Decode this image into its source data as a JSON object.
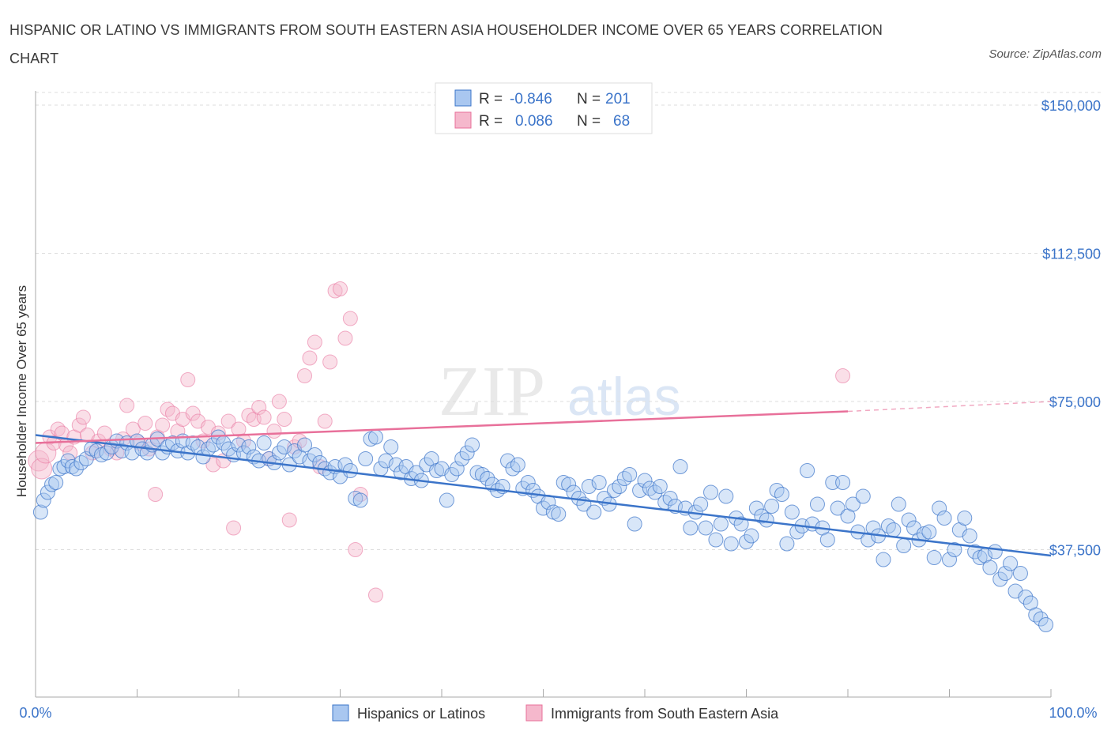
{
  "title": "HISPANIC OR LATINO VS IMMIGRANTS FROM SOUTH EASTERN ASIA HOUSEHOLDER INCOME OVER 65 YEARS CORRELATION CHART",
  "source": "Source: ZipAtlas.com",
  "watermark": {
    "zip": "ZIP",
    "atlas": "atlas"
  },
  "colors": {
    "blue": "#3b74c9",
    "blue_fill": "#a9c7f0",
    "pink": "#e8709a",
    "pink_fill": "#f5b8cc",
    "grid": "#dddddd"
  },
  "legend": {
    "rows": [
      {
        "r_label": "R =",
        "r_value": "-0.846",
        "n_label": "N =",
        "n_value": "201"
      },
      {
        "r_label": "R =",
        "r_value": "0.086",
        "n_label": "N =",
        "n_value": "68"
      }
    ]
  },
  "chart_data": {
    "type": "scatter",
    "title": "HISPANIC OR LATINO VS IMMIGRANTS FROM SOUTH EASTERN ASIA HOUSEHOLDER INCOME OVER 65 YEARS CORRELATION CHART",
    "xlabel": "",
    "ylabel": "Householder Income Over 65 years",
    "xlim": [
      0,
      100
    ],
    "ylim": [
      0,
      150000
    ],
    "x_tick_labels": [
      "0.0%",
      "100.0%"
    ],
    "y_tick_labels": [
      "$150,000",
      "$112,500",
      "$75,000",
      "$37,500"
    ],
    "y_ticks": [
      150000,
      112500,
      75000,
      37500
    ],
    "grid": true,
    "legend_position": "top-center and bottom",
    "series": [
      {
        "name": "Hispanics or Latinos",
        "color": "#3b74c9",
        "trend": {
          "x": [
            0,
            100
          ],
          "y": [
            66500,
            36000
          ]
        },
        "points": [
          [
            0.5,
            47000
          ],
          [
            0.8,
            50000
          ],
          [
            1.2,
            52000
          ],
          [
            1.6,
            54000
          ],
          [
            2.0,
            54500
          ],
          [
            2.4,
            58000
          ],
          [
            2.8,
            58500
          ],
          [
            3.2,
            60000
          ],
          [
            3.6,
            58500
          ],
          [
            4.0,
            58000
          ],
          [
            4.5,
            59500
          ],
          [
            5.0,
            60500
          ],
          [
            5.5,
            63000
          ],
          [
            6.0,
            62500
          ],
          [
            6.5,
            61500
          ],
          [
            7.0,
            62000
          ],
          [
            7.5,
            63500
          ],
          [
            8.0,
            65000
          ],
          [
            8.5,
            62500
          ],
          [
            9.0,
            64500
          ],
          [
            9.5,
            62000
          ],
          [
            10.0,
            65000
          ],
          [
            10.5,
            63000
          ],
          [
            11.0,
            62000
          ],
          [
            11.5,
            64000
          ],
          [
            12.0,
            65500
          ],
          [
            12.5,
            62000
          ],
          [
            13.0,
            63500
          ],
          [
            13.5,
            64500
          ],
          [
            14.0,
            62500
          ],
          [
            14.5,
            65000
          ],
          [
            15.0,
            62000
          ],
          [
            15.5,
            64500
          ],
          [
            16.0,
            63500
          ],
          [
            16.5,
            61000
          ],
          [
            17.0,
            63000
          ],
          [
            17.5,
            64000
          ],
          [
            18.0,
            66000
          ],
          [
            18.5,
            64500
          ],
          [
            19.0,
            63000
          ],
          [
            19.5,
            61500
          ],
          [
            20.0,
            64000
          ],
          [
            20.5,
            62000
          ],
          [
            21.0,
            63500
          ],
          [
            21.5,
            61000
          ],
          [
            22.0,
            60000
          ],
          [
            22.5,
            64500
          ],
          [
            23.0,
            60500
          ],
          [
            23.5,
            59500
          ],
          [
            24.0,
            62000
          ],
          [
            24.5,
            63500
          ],
          [
            25.0,
            59000
          ],
          [
            25.5,
            62500
          ],
          [
            26.0,
            61000
          ],
          [
            26.5,
            64000
          ],
          [
            27.0,
            60000
          ],
          [
            27.5,
            61500
          ],
          [
            28.0,
            59500
          ],
          [
            28.5,
            58000
          ],
          [
            29.0,
            57000
          ],
          [
            29.5,
            58500
          ],
          [
            30.0,
            56000
          ],
          [
            30.5,
            59000
          ],
          [
            31.0,
            57500
          ],
          [
            31.5,
            50500
          ],
          [
            32.0,
            50000
          ],
          [
            32.5,
            60500
          ],
          [
            33.0,
            65500
          ],
          [
            33.5,
            66000
          ],
          [
            34.0,
            58000
          ],
          [
            34.5,
            60000
          ],
          [
            35.0,
            63500
          ],
          [
            35.5,
            59000
          ],
          [
            36.0,
            57000
          ],
          [
            36.5,
            58500
          ],
          [
            37.0,
            55500
          ],
          [
            37.5,
            57000
          ],
          [
            38.0,
            55000
          ],
          [
            38.5,
            59000
          ],
          [
            39.0,
            60500
          ],
          [
            39.5,
            57500
          ],
          [
            40.0,
            58000
          ],
          [
            40.5,
            50000
          ],
          [
            41.0,
            56500
          ],
          [
            41.5,
            58000
          ],
          [
            42.0,
            60500
          ],
          [
            42.5,
            62000
          ],
          [
            43.0,
            64000
          ],
          [
            43.5,
            57000
          ],
          [
            44.0,
            56500
          ],
          [
            44.5,
            55500
          ],
          [
            45.0,
            54000
          ],
          [
            45.5,
            52500
          ],
          [
            46.0,
            53500
          ],
          [
            46.5,
            60000
          ],
          [
            47.0,
            58000
          ],
          [
            47.5,
            59000
          ],
          [
            48.0,
            53000
          ],
          [
            48.5,
            54500
          ],
          [
            49.0,
            52500
          ],
          [
            49.5,
            51000
          ],
          [
            50.0,
            48000
          ],
          [
            50.5,
            49500
          ],
          [
            51.0,
            47000
          ],
          [
            51.5,
            46500
          ],
          [
            52.0,
            54500
          ],
          [
            52.5,
            54000
          ],
          [
            53.0,
            52000
          ],
          [
            53.5,
            50500
          ],
          [
            54.0,
            49000
          ],
          [
            54.5,
            53500
          ],
          [
            55.0,
            47000
          ],
          [
            55.5,
            54500
          ],
          [
            56.0,
            50500
          ],
          [
            56.5,
            49000
          ],
          [
            57.0,
            52500
          ],
          [
            57.5,
            53500
          ],
          [
            58.0,
            55500
          ],
          [
            58.5,
            56500
          ],
          [
            59.0,
            44000
          ],
          [
            59.5,
            52500
          ],
          [
            60.0,
            55000
          ],
          [
            60.5,
            53000
          ],
          [
            61.0,
            52000
          ],
          [
            61.5,
            53500
          ],
          [
            62.0,
            49500
          ],
          [
            62.5,
            50500
          ],
          [
            63.0,
            48500
          ],
          [
            63.5,
            58500
          ],
          [
            64.0,
            48000
          ],
          [
            64.5,
            43000
          ],
          [
            65.0,
            47000
          ],
          [
            65.5,
            49000
          ],
          [
            66.0,
            43000
          ],
          [
            66.5,
            52000
          ],
          [
            67.0,
            40000
          ],
          [
            67.5,
            44000
          ],
          [
            68.0,
            51000
          ],
          [
            68.5,
            39000
          ],
          [
            69.0,
            45500
          ],
          [
            69.5,
            44000
          ],
          [
            70.0,
            39500
          ],
          [
            70.5,
            41000
          ],
          [
            71.0,
            48000
          ],
          [
            71.5,
            46000
          ],
          [
            72.0,
            45000
          ],
          [
            72.5,
            48500
          ],
          [
            73.0,
            52500
          ],
          [
            73.5,
            51500
          ],
          [
            74.0,
            39000
          ],
          [
            74.5,
            47000
          ],
          [
            75.0,
            42000
          ],
          [
            75.5,
            43500
          ],
          [
            76.0,
            57500
          ],
          [
            76.5,
            44000
          ],
          [
            77.0,
            49000
          ],
          [
            77.5,
            43000
          ],
          [
            78.0,
            40000
          ],
          [
            78.5,
            54500
          ],
          [
            79.0,
            48000
          ],
          [
            79.5,
            54500
          ],
          [
            80.0,
            46000
          ],
          [
            80.5,
            49000
          ],
          [
            81.0,
            42000
          ],
          [
            81.5,
            51000
          ],
          [
            82.0,
            40000
          ],
          [
            82.5,
            43000
          ],
          [
            83.0,
            41000
          ],
          [
            83.5,
            35000
          ],
          [
            84.0,
            43500
          ],
          [
            84.5,
            42500
          ],
          [
            85.0,
            49000
          ],
          [
            85.5,
            38500
          ],
          [
            86.0,
            45000
          ],
          [
            86.5,
            43000
          ],
          [
            87.0,
            40000
          ],
          [
            87.5,
            41500
          ],
          [
            88.0,
            42000
          ],
          [
            88.5,
            35500
          ],
          [
            89.0,
            48000
          ],
          [
            89.5,
            45500
          ],
          [
            90.0,
            35000
          ],
          [
            90.5,
            37500
          ],
          [
            91.0,
            42500
          ],
          [
            91.5,
            45500
          ],
          [
            92.0,
            41000
          ],
          [
            92.5,
            37000
          ],
          [
            93.0,
            35500
          ],
          [
            93.5,
            36000
          ],
          [
            94.0,
            33000
          ],
          [
            94.5,
            37000
          ],
          [
            95.0,
            30000
          ],
          [
            95.5,
            31500
          ],
          [
            96.0,
            34000
          ],
          [
            96.5,
            27000
          ],
          [
            97.0,
            31500
          ],
          [
            97.5,
            25500
          ],
          [
            98.0,
            24000
          ],
          [
            98.5,
            21000
          ],
          [
            99.0,
            20000
          ],
          [
            99.5,
            18500
          ]
        ]
      },
      {
        "name": "Immigrants from South Eastern Asia",
        "color": "#e8709a",
        "trend": {
          "x": [
            0,
            80
          ],
          "y": [
            64500,
            72500
          ]
        },
        "trend_dashed": {
          "x": [
            80,
            100
          ],
          "y": [
            72500,
            75000
          ]
        },
        "points": [
          [
            0.3,
            60000
          ],
          [
            0.6,
            58000
          ],
          [
            1.0,
            62000
          ],
          [
            1.4,
            66000
          ],
          [
            1.8,
            64500
          ],
          [
            2.2,
            68000
          ],
          [
            2.6,
            67000
          ],
          [
            3.0,
            64000
          ],
          [
            3.4,
            62000
          ],
          [
            3.8,
            66000
          ],
          [
            4.3,
            69000
          ],
          [
            4.7,
            71000
          ],
          [
            5.1,
            66500
          ],
          [
            5.6,
            62000
          ],
          [
            6.2,
            65000
          ],
          [
            6.8,
            67000
          ],
          [
            7.4,
            63000
          ],
          [
            8.0,
            62000
          ],
          [
            8.6,
            65500
          ],
          [
            9.0,
            74000
          ],
          [
            9.6,
            68000
          ],
          [
            10.2,
            64500
          ],
          [
            10.8,
            69500
          ],
          [
            11.2,
            63000
          ],
          [
            11.8,
            51500
          ],
          [
            12.0,
            66000
          ],
          [
            12.5,
            69000
          ],
          [
            13.0,
            73000
          ],
          [
            13.5,
            72000
          ],
          [
            14.0,
            67500
          ],
          [
            14.5,
            70500
          ],
          [
            15.0,
            80500
          ],
          [
            15.5,
            72000
          ],
          [
            16.0,
            70000
          ],
          [
            16.5,
            65000
          ],
          [
            17.0,
            68500
          ],
          [
            17.5,
            59000
          ],
          [
            18.0,
            67000
          ],
          [
            18.5,
            60000
          ],
          [
            19.0,
            70000
          ],
          [
            19.5,
            43000
          ],
          [
            20.0,
            68000
          ],
          [
            20.5,
            65000
          ],
          [
            21.0,
            71500
          ],
          [
            21.5,
            70500
          ],
          [
            22.0,
            73500
          ],
          [
            22.5,
            71000
          ],
          [
            23.0,
            60500
          ],
          [
            23.5,
            67500
          ],
          [
            24.0,
            75000
          ],
          [
            24.5,
            70500
          ],
          [
            25.0,
            45000
          ],
          [
            25.5,
            63500
          ],
          [
            26.0,
            65000
          ],
          [
            26.5,
            81500
          ],
          [
            27.0,
            86000
          ],
          [
            27.5,
            90000
          ],
          [
            28.0,
            58500
          ],
          [
            28.5,
            70000
          ],
          [
            29.0,
            85000
          ],
          [
            29.5,
            103000
          ],
          [
            30.0,
            103500
          ],
          [
            30.5,
            91000
          ],
          [
            31.0,
            96000
          ],
          [
            31.5,
            37500
          ],
          [
            32.0,
            51500
          ],
          [
            33.5,
            26000
          ],
          [
            79.5,
            81500
          ]
        ]
      }
    ]
  },
  "bottom_legend": {
    "items": [
      {
        "label": "Hispanics or Latinos"
      },
      {
        "label": "Immigrants from South Eastern Asia"
      }
    ]
  }
}
